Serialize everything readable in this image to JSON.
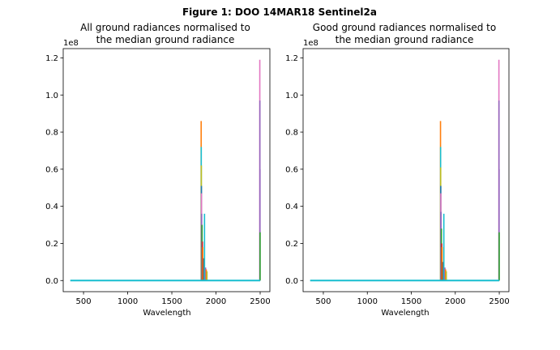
{
  "figure_title": "Figure 1: DOO 14MAR18  Sentinel2a",
  "colors": [
    "#1f77b4",
    "#ff7f0e",
    "#2ca02c",
    "#d62728",
    "#9467bd",
    "#8c564b",
    "#e377c2",
    "#7f7f7f",
    "#bcbd22",
    "#17becf"
  ],
  "chart_data": [
    {
      "type": "line",
      "title_lines": [
        "All ground radiances normalised to",
        "the median ground radiance"
      ],
      "xlabel": "Wavelength",
      "ylabel": "",
      "y_offset_label": "1e8",
      "xlim": [
        270,
        2610
      ],
      "ylim": [
        -0.06,
        1.25
      ],
      "xticks": [
        500,
        1000,
        1500,
        2000,
        2500
      ],
      "xtick_labels": [
        "500",
        "1000",
        "1500",
        "2000",
        "2500"
      ],
      "yticks": [
        0.0,
        0.2,
        0.4,
        0.6,
        0.8,
        1.0,
        1.2
      ],
      "ytick_labels": [
        "0.0",
        "0.2",
        "0.4",
        "0.6",
        "0.8",
        "1.0",
        "1.2"
      ],
      "grid": false,
      "spikes": [
        {
          "x": 1832,
          "y": 0.86,
          "color": 1
        },
        {
          "x": 1833,
          "y": 0.72,
          "color": 9
        },
        {
          "x": 1834,
          "y": 0.62,
          "color": 8
        },
        {
          "x": 1835,
          "y": 0.51,
          "color": 0
        },
        {
          "x": 1836,
          "y": 0.47,
          "color": 6
        },
        {
          "x": 1838,
          "y": 0.36,
          "color": 4
        },
        {
          "x": 1842,
          "y": 0.3,
          "color": 2
        },
        {
          "x": 1846,
          "y": 0.21,
          "color": 3
        },
        {
          "x": 1850,
          "y": 0.18,
          "color": 1
        },
        {
          "x": 1858,
          "y": 0.12,
          "color": 5
        },
        {
          "x": 1870,
          "y": 0.36,
          "color": 9
        },
        {
          "x": 1882,
          "y": 0.07,
          "color": 4
        },
        {
          "x": 1890,
          "y": 0.06,
          "color": 1
        },
        {
          "x": 1898,
          "y": 0.05,
          "color": 8
        },
        {
          "x": 2496,
          "y": 1.19,
          "color": 6
        },
        {
          "x": 2497,
          "y": 0.97,
          "color": 4
        },
        {
          "x": 2498,
          "y": 0.6,
          "color": 4
        },
        {
          "x": 2499,
          "y": 0.26,
          "color": 2
        }
      ]
    },
    {
      "type": "line",
      "title_lines": [
        "Good ground radiances normalised to",
        "the median ground radiance"
      ],
      "xlabel": "Wavelength",
      "ylabel": "",
      "y_offset_label": "1e8",
      "xlim": [
        270,
        2610
      ],
      "ylim": [
        -0.06,
        1.25
      ],
      "xticks": [
        500,
        1000,
        1500,
        2000,
        2500
      ],
      "xtick_labels": [
        "500",
        "1000",
        "1500",
        "2000",
        "2500"
      ],
      "yticks": [
        0.0,
        0.2,
        0.4,
        0.6,
        0.8,
        1.0,
        1.2
      ],
      "ytick_labels": [
        "0.0",
        "0.2",
        "0.4",
        "0.6",
        "0.8",
        "1.0",
        "1.2"
      ],
      "grid": false,
      "spikes": [
        {
          "x": 1832,
          "y": 0.86,
          "color": 1
        },
        {
          "x": 1833,
          "y": 0.72,
          "color": 9
        },
        {
          "x": 1834,
          "y": 0.61,
          "color": 8
        },
        {
          "x": 1835,
          "y": 0.51,
          "color": 0
        },
        {
          "x": 1836,
          "y": 0.47,
          "color": 6
        },
        {
          "x": 1838,
          "y": 0.37,
          "color": 4
        },
        {
          "x": 1842,
          "y": 0.28,
          "color": 2
        },
        {
          "x": 1846,
          "y": 0.2,
          "color": 3
        },
        {
          "x": 1850,
          "y": 0.18,
          "color": 1
        },
        {
          "x": 1858,
          "y": 0.1,
          "color": 5
        },
        {
          "x": 1870,
          "y": 0.36,
          "color": 9
        },
        {
          "x": 1882,
          "y": 0.07,
          "color": 4
        },
        {
          "x": 1890,
          "y": 0.06,
          "color": 1
        },
        {
          "x": 1898,
          "y": 0.05,
          "color": 8
        },
        {
          "x": 2496,
          "y": 1.19,
          "color": 6
        },
        {
          "x": 2497,
          "y": 0.97,
          "color": 4
        },
        {
          "x": 2498,
          "y": 0.6,
          "color": 4
        },
        {
          "x": 2499,
          "y": 0.26,
          "color": 2
        }
      ]
    }
  ]
}
